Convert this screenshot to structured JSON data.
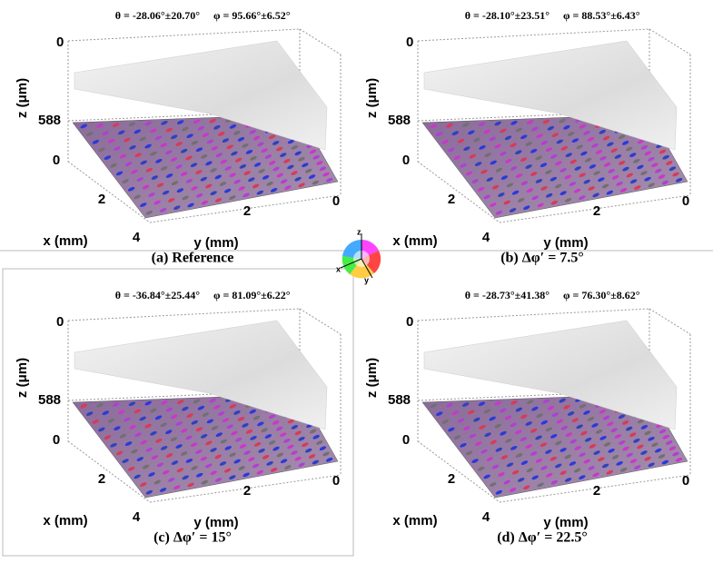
{
  "panels": [
    {
      "theta": "θ = -28.06°±20.70°",
      "phi": "φ = 95.66°±6.52°",
      "z_label": "z (μm)",
      "z_ticks": [
        0,
        588
      ],
      "x_label": "x (mm)",
      "x_ticks": [
        0,
        2,
        4
      ],
      "y_label": "y (mm)",
      "y_ticks": [
        2,
        0
      ],
      "caption": "(a) Reference"
    },
    {
      "theta": "θ = -28.10°±23.51°",
      "phi": "φ = 88.53°±6.43°",
      "z_label": "z (μm)",
      "z_ticks": [
        0,
        588
      ],
      "x_label": "x (mm)",
      "x_ticks": [
        0,
        2,
        4
      ],
      "y_label": "y (mm)",
      "y_ticks": [
        2,
        0
      ],
      "caption": "(b) Δφ′ = 7.5°"
    },
    {
      "theta": "θ = -36.84°±25.44°",
      "phi": "φ = 81.09°±6.22°",
      "z_label": "z (μm)",
      "z_ticks": [
        0,
        588
      ],
      "x_label": "x (mm)",
      "x_ticks": [
        0,
        2,
        4
      ],
      "y_label": "y (mm)",
      "y_ticks": [
        2,
        0
      ],
      "caption": "(c) Δφ′ = 15°"
    },
    {
      "theta": "θ = -28.73°±41.38°",
      "phi": "φ = 76.30°±8.62°",
      "z_label": "z (μm)",
      "z_ticks": [
        0,
        588
      ],
      "x_label": "x (mm)",
      "x_ticks": [
        0,
        2,
        4
      ],
      "y_label": "y (mm)",
      "y_ticks": [
        2,
        0
      ],
      "caption": "(d) Δφ′ = 22.5°"
    }
  ],
  "legend": {
    "x": "x",
    "y": "y",
    "z": "z"
  }
}
